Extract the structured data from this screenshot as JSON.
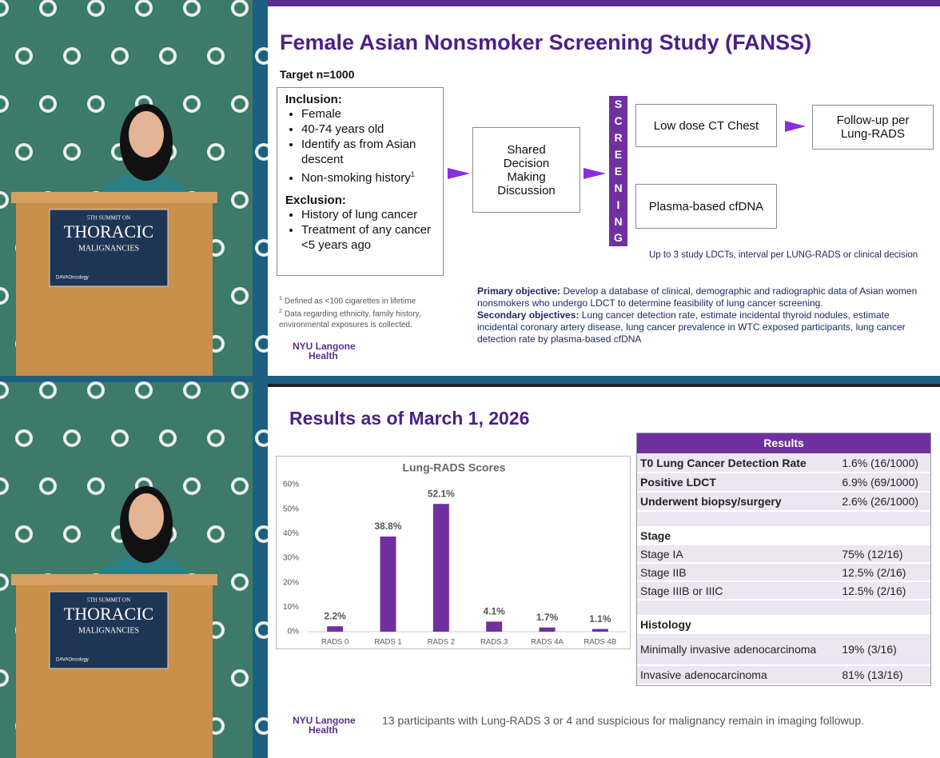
{
  "podium": {
    "line1": "5TH SUMMIT ON",
    "line2": "THORACIC",
    "line3": "MALIGNANCIES",
    "sponsor": "DAVAOncology"
  },
  "slide1": {
    "title": "Female Asian Nonsmoker Screening Study (FANSS)",
    "target": "Target n=1000",
    "inclusion_heading": "Inclusion:",
    "inclusion": [
      "Female",
      "40-74 years old",
      "Identify as from Asian descent",
      "Non-smoking history"
    ],
    "inclusion_note_ref": "1",
    "exclusion_heading": "Exclusion:",
    "exclusion": [
      "History of lung cancer",
      "Treatment of any cancer <5 years ago"
    ],
    "decision": "Shared Decision Making Discussion",
    "screening": [
      "S",
      "C",
      "R",
      "E",
      "E",
      "N",
      "I",
      "N",
      "G"
    ],
    "ct": "Low dose CT Chest",
    "followup": "Follow-up per Lung-RADS",
    "cfdna": "Plasma-based cfDNA",
    "interval_note": "Up to 3 study LDCTs, interval per LUNG-RADS or clinical decision",
    "footnotes": [
      {
        "ref": "1",
        "text": "Defined as <100 cigarettes in lifetime"
      },
      {
        "ref": "2",
        "text": "Data regarding ethnicity, family history, environmental exposures is collected."
      }
    ],
    "primary_label": "Primary objective:",
    "primary_text": "Develop a database of clinical, demographic and radiographic data of Asian women nonsmokers who undergo LDCT to determine feasibility of lung cancer screening.",
    "secondary_label": "Secondary objectives:",
    "secondary_text": "Lung cancer detection rate, estimate incidental thyroid nodules, estimate incidental coronary artery disease, lung cancer prevalence in WTC exposed participants, lung cancer detection rate by plasma-based cfDNA",
    "logo_line1": "NYU Langone",
    "logo_line2": "Health"
  },
  "slide2": {
    "title": "Results as of March 1, 2026",
    "table_header": "Results",
    "rows": [
      [
        "T0 Lung Cancer Detection Rate",
        "1.6% (16/1000)"
      ],
      [
        "Positive LDCT",
        "6.9% (69/1000)"
      ],
      [
        "Underwent biopsy/surgery",
        "2.6% (26/1000)"
      ]
    ],
    "stage_heading": "Stage",
    "stage_rows": [
      [
        "Stage IA",
        "75% (12/16)"
      ],
      [
        "Stage IIB",
        "12.5% (2/16)"
      ],
      [
        "Stage IIIB or IIIC",
        "12.5% (2/16)"
      ]
    ],
    "histology_heading": "Histology",
    "histology_rows": [
      [
        "Minimally invasive adenocarcinoma",
        "19% (3/16)"
      ],
      [
        "Invasive adenocarcinoma",
        "81% (13/16)"
      ]
    ],
    "footer": "13 participants with Lung-RADS 3 or 4 and suspicious for malignancy remain in imaging followup.",
    "logo_line1": "NYU Langone",
    "logo_line2": "Health"
  },
  "chart_data": {
    "type": "bar",
    "title": "Lung-RADS Scores",
    "categories": [
      "RADS 0",
      "RADS 1",
      "RADS 2",
      "RADS 3",
      "RADS 4A",
      "RADS 4B"
    ],
    "values": [
      2.2,
      38.8,
      52.1,
      4.1,
      1.7,
      1.1
    ],
    "value_labels": [
      "2.2%",
      "38.8%",
      "52.1%",
      "4.1%",
      "1.7%",
      "1.1%"
    ],
    "color": "#7030a0",
    "grid": false,
    "ylim": [
      0,
      60
    ],
    "yticks": [
      {
        "value": 0,
        "label": "0%"
      },
      {
        "value": 10,
        "label": "10%"
      },
      {
        "value": 20,
        "label": "20%"
      },
      {
        "value": 30,
        "label": "30%"
      },
      {
        "value": 40,
        "label": "40%"
      },
      {
        "value": 50,
        "label": "50%"
      },
      {
        "value": 60,
        "label": "60%"
      }
    ]
  }
}
